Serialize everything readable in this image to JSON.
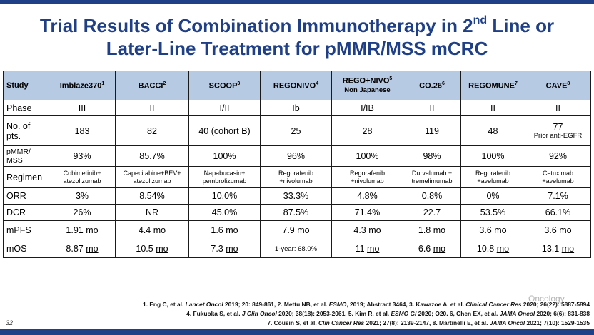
{
  "slide": {
    "title_line1_pre": "Trial Results of Combination Immunotherapy in 2",
    "title_line1_sup": "nd",
    "title_line1_post": " Line or",
    "title_line2": "Later-Line Treatment for pMMR/MSS mCRC",
    "page_number": "32",
    "watermark": "Oncology"
  },
  "table": {
    "header": {
      "study": "Study",
      "studies": [
        {
          "name": "Imblaze370",
          "ref": "1",
          "sub": ""
        },
        {
          "name": "BACCI",
          "ref": "2",
          "sub": ""
        },
        {
          "name": "SCOOP",
          "ref": "3",
          "sub": ""
        },
        {
          "name": "REGONIVO",
          "ref": "4",
          "sub": ""
        },
        {
          "name": "REGO+NIVO",
          "ref": "5",
          "sub": "Non Japanese"
        },
        {
          "name": "CO.26",
          "ref": "6",
          "sub": ""
        },
        {
          "name": "REGOMUNE",
          "ref": "7",
          "sub": ""
        },
        {
          "name": "CAVE",
          "ref": "8",
          "sub": ""
        }
      ]
    },
    "rows": {
      "phase": {
        "label": "Phase",
        "values": [
          "III",
          "II",
          "I/II",
          "Ib",
          "I/IB",
          "II",
          "II",
          "II"
        ]
      },
      "pts": {
        "label_1": "No. of",
        "label_2": "pts.",
        "values": [
          "183",
          "82",
          "40 (cohort B)",
          "25",
          "28",
          "119",
          "48",
          "77"
        ],
        "cave_note": "Prior anti-EGFR"
      },
      "pmmr": {
        "label_1": "pMMR/",
        "label_2": "MSS",
        "values": [
          "93%",
          "85.7%",
          "100%",
          "96%",
          "100%",
          "98%",
          "100%",
          "92%"
        ]
      },
      "regimen": {
        "label": "Regimen",
        "line1": [
          "Cobimetinib+",
          "Capecitabine+BEV+",
          "Napabucasin+",
          "Regorafenib",
          "Regorafenib",
          "Durvalumab +",
          "Regorafenib",
          "Cetuximab"
        ],
        "line2": [
          "atezolizumab",
          "atezolizumab",
          "pembrolizumab",
          "+nivolumab",
          "+nivolumab",
          "tremelimumab",
          "+avelumab",
          "+avelumab"
        ]
      },
      "orr": {
        "label": "ORR",
        "values": [
          "3%",
          "8.54%",
          "10.0%",
          "33.3%",
          "4.8%",
          "0.8%",
          "0%",
          "7.1%"
        ]
      },
      "dcr": {
        "label": "DCR",
        "values": [
          "26%",
          "NR",
          "45.0%",
          "87.5%",
          "71.4%",
          "22.7",
          "53.5%",
          "66.1%"
        ]
      },
      "pfs": {
        "label": "mPFS",
        "nums": [
          "1.91",
          "4.4",
          "1.6",
          "7.9",
          "4.3",
          "1.8",
          "3.6",
          "3.6"
        ],
        "unit": "mo"
      },
      "os": {
        "label": "mOS",
        "nums": [
          "8.87",
          "10.5",
          "7.3",
          "",
          "11",
          "6.6",
          "10.8",
          "13.1"
        ],
        "unit": "mo",
        "regonivo_text": "1-year: 68.0%"
      }
    }
  },
  "references": {
    "line1": [
      {
        "t": "1. Eng C, et al. "
      },
      {
        "t": "Lancet Oncol",
        "i": true
      },
      {
        "t": " 2019; 20: 849-861,  2. Mettu NB, et al. "
      },
      {
        "t": "ESMO",
        "i": true
      },
      {
        "t": ", 2019; Abstract 3464,  3. Kawazoe A, et al. "
      },
      {
        "t": "Clinical Cancer Res",
        "i": true
      },
      {
        "t": " 2020; 26(22): 5887-5894"
      }
    ],
    "line2": [
      {
        "t": "4. Fukuoka S, et al. "
      },
      {
        "t": "J Clin Oncol",
        "i": true
      },
      {
        "t": " 2020; 38(18): 2053-2061,  5. Kim R, et al. "
      },
      {
        "t": "ESMO GI",
        "i": true
      },
      {
        "t": " 2020; O20. 6,  Chen EX, et al. "
      },
      {
        "t": "JAMA Oncol",
        "i": true
      },
      {
        "t": " 2020; 6(6): 831-838"
      }
    ],
    "line3": [
      {
        "t": "7. Cousin S, et al. "
      },
      {
        "t": "Clin Cancer Res",
        "i": true
      },
      {
        "t": " 2021; 27(8): 2139-2147,  8. Martinelli E, et al. "
      },
      {
        "t": "JAMA Oncol",
        "i": true
      },
      {
        "t": " 2021; 7(10): 1529-1535"
      }
    ]
  }
}
